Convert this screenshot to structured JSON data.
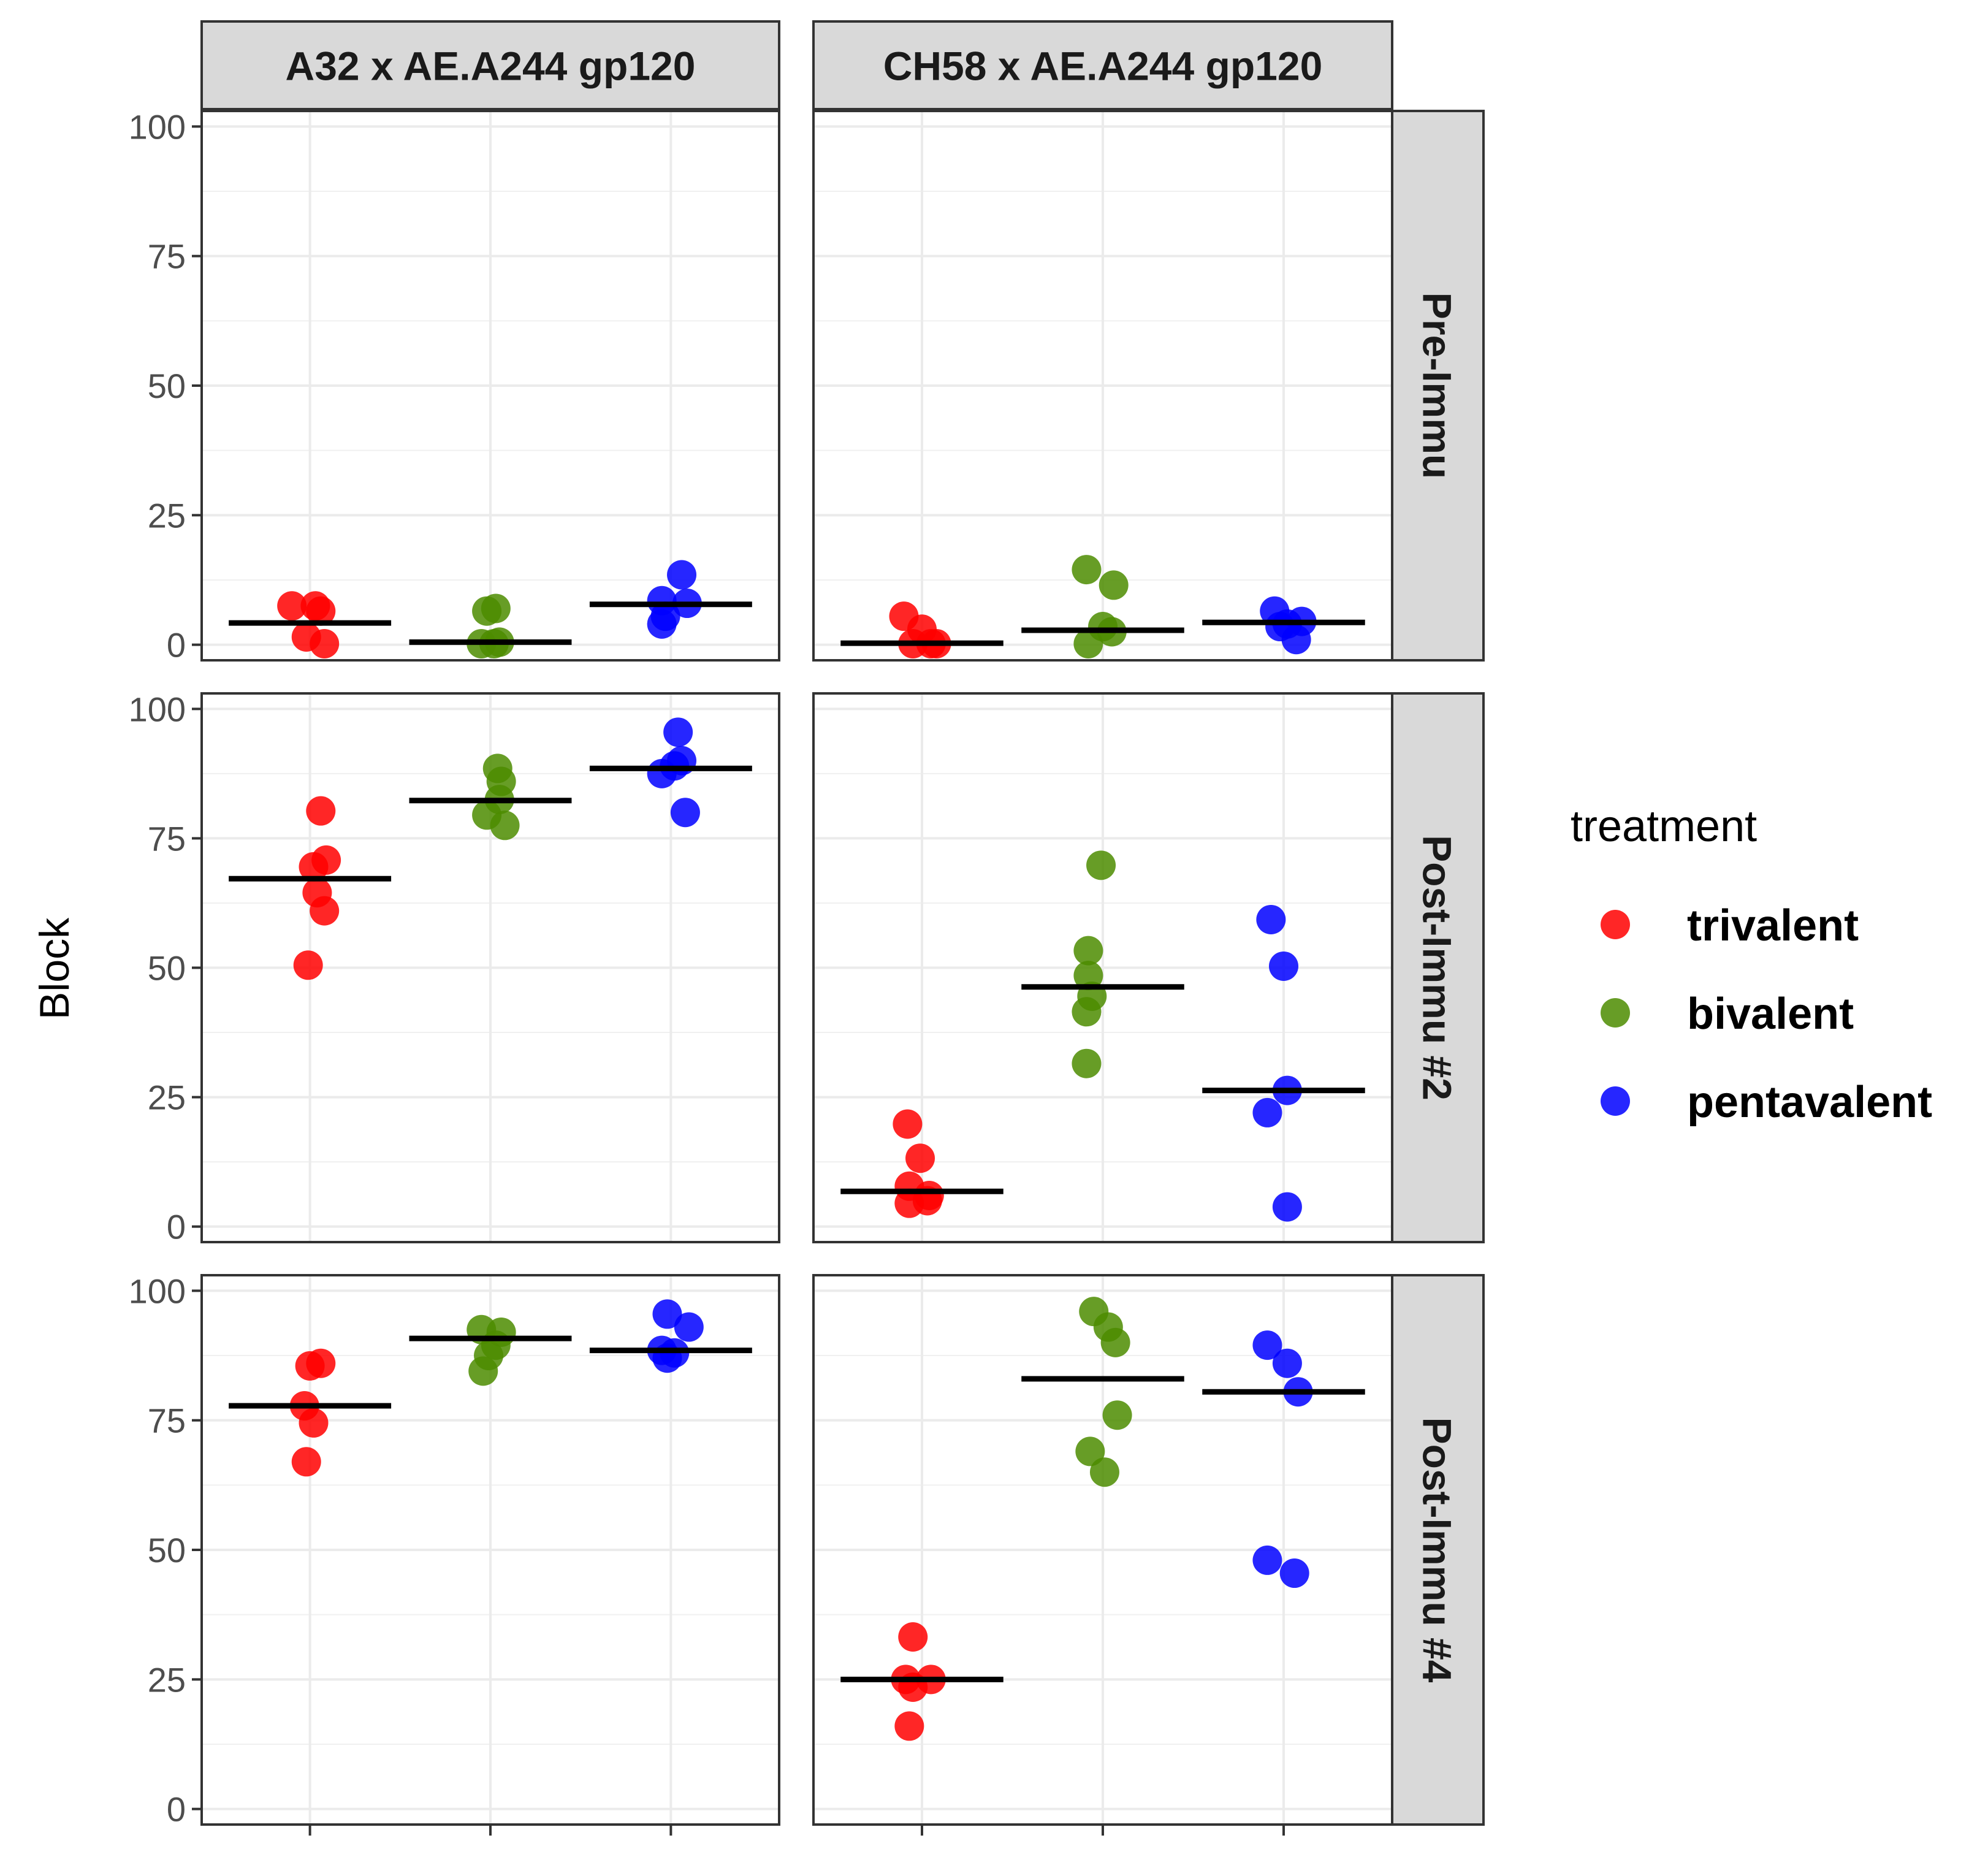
{
  "chart_data": {
    "type": "scatter",
    "title": "",
    "ylabel": "Block",
    "xlabel": "",
    "ylim": [
      -3,
      103
    ],
    "yticks": [
      0,
      25,
      50,
      75,
      100
    ],
    "grid": true,
    "legend_position": "right",
    "legend": {
      "title": "treatment",
      "entries": [
        {
          "label": "trivalent",
          "color": "#ff0000"
        },
        {
          "label": "bivalent",
          "color": "#4c8c00"
        },
        {
          "label": "pentavalent",
          "color": "#0000ff"
        }
      ]
    },
    "categories": [
      "trivalent",
      "bivalent",
      "pentavalent"
    ],
    "colors": {
      "trivalent": "#ff0000",
      "bivalent": "#4c8c00",
      "pentavalent": "#0000ff"
    },
    "columns": [
      "A32 x AE.A244 gp120",
      "CH58 x AE.A244 gp120"
    ],
    "rows": [
      "Pre-Immu",
      "Post-Immu #2",
      "Post-Immu #4"
    ],
    "panels": [
      {
        "row": 0,
        "col": 0,
        "series": [
          {
            "name": "trivalent",
            "mean": 4.2,
            "points": [
              [
                -0.1,
                7.5
              ],
              [
                0.03,
                7.5
              ],
              [
                0.06,
                6.5
              ],
              [
                -0.02,
                1.5
              ],
              [
                0.08,
                0.2
              ]
            ]
          },
          {
            "name": "bivalent",
            "mean": 0.5,
            "points": [
              [
                -0.02,
                6.5
              ],
              [
                0.03,
                7.0
              ],
              [
                -0.05,
                0.2
              ],
              [
                0.02,
                0.2
              ],
              [
                0.05,
                0.5
              ]
            ]
          },
          {
            "name": "pentavalent",
            "mean": 7.8,
            "points": [
              [
                0.06,
                13.5
              ],
              [
                -0.05,
                8.5
              ],
              [
                0.09,
                8.0
              ],
              [
                -0.03,
                5.5
              ],
              [
                -0.05,
                4.0
              ]
            ]
          }
        ]
      },
      {
        "row": 0,
        "col": 1,
        "series": [
          {
            "name": "trivalent",
            "mean": 0.3,
            "points": [
              [
                -0.1,
                5.5
              ],
              [
                0.0,
                3.0
              ],
              [
                -0.05,
                0.2
              ],
              [
                0.05,
                0.2
              ],
              [
                0.08,
                0.2
              ]
            ]
          },
          {
            "name": "bivalent",
            "mean": 2.8,
            "points": [
              [
                -0.09,
                14.5
              ],
              [
                0.06,
                11.5
              ],
              [
                -0.08,
                0.2
              ],
              [
                0.0,
                3.5
              ],
              [
                0.05,
                2.5
              ]
            ]
          },
          {
            "name": "pentavalent",
            "mean": 4.3,
            "points": [
              [
                -0.05,
                6.5
              ],
              [
                0.1,
                4.5
              ],
              [
                -0.02,
                3.5
              ],
              [
                0.07,
                1.0
              ],
              [
                0.02,
                4.0
              ]
            ]
          }
        ]
      },
      {
        "row": 1,
        "col": 0,
        "series": [
          {
            "name": "trivalent",
            "mean": 67.2,
            "points": [
              [
                0.06,
                80.3
              ],
              [
                0.09,
                70.8
              ],
              [
                0.02,
                69.5
              ],
              [
                0.04,
                64.5
              ],
              [
                0.08,
                61.0
              ],
              [
                -0.01,
                50.5
              ]
            ]
          },
          {
            "name": "bivalent",
            "mean": 82.3,
            "points": [
              [
                0.04,
                88.5
              ],
              [
                0.06,
                86.0
              ],
              [
                0.05,
                82.5
              ],
              [
                -0.02,
                79.5
              ],
              [
                0.08,
                77.5
              ]
            ]
          },
          {
            "name": "pentavalent",
            "mean": 88.5,
            "points": [
              [
                0.04,
                95.5
              ],
              [
                0.06,
                90.0
              ],
              [
                -0.05,
                87.5
              ],
              [
                0.02,
                89.0
              ],
              [
                0.08,
                80.0
              ]
            ]
          }
        ]
      },
      {
        "row": 1,
        "col": 1,
        "series": [
          {
            "name": "trivalent",
            "mean": 6.8,
            "points": [
              [
                -0.08,
                19.8
              ],
              [
                -0.01,
                13.2
              ],
              [
                -0.07,
                7.8
              ],
              [
                0.03,
                5.0
              ],
              [
                -0.07,
                4.5
              ],
              [
                0.04,
                6.0
              ]
            ]
          },
          {
            "name": "bivalent",
            "mean": 46.3,
            "points": [
              [
                -0.01,
                69.8
              ],
              [
                -0.08,
                53.3
              ],
              [
                -0.08,
                48.5
              ],
              [
                -0.06,
                44.5
              ],
              [
                -0.09,
                41.5
              ],
              [
                -0.09,
                31.5
              ]
            ]
          },
          {
            "name": "pentavalent",
            "mean": 26.3,
            "points": [
              [
                -0.07,
                59.3
              ],
              [
                0.0,
                50.3
              ],
              [
                0.02,
                26.3
              ],
              [
                -0.09,
                22.0
              ],
              [
                0.02,
                3.8
              ]
            ]
          }
        ]
      },
      {
        "row": 2,
        "col": 0,
        "series": [
          {
            "name": "trivalent",
            "mean": 77.8,
            "points": [
              [
                0.06,
                86.0
              ],
              [
                0.0,
                85.5
              ],
              [
                -0.03,
                77.8
              ],
              [
                0.02,
                74.5
              ],
              [
                -0.02,
                67.0
              ]
            ]
          },
          {
            "name": "bivalent",
            "mean": 90.8,
            "points": [
              [
                -0.05,
                92.5
              ],
              [
                0.06,
                92.0
              ],
              [
                0.03,
                89.5
              ],
              [
                -0.01,
                87.5
              ],
              [
                -0.04,
                84.5
              ]
            ]
          },
          {
            "name": "pentavalent",
            "mean": 88.5,
            "points": [
              [
                -0.02,
                95.5
              ],
              [
                0.1,
                93.0
              ],
              [
                -0.05,
                88.5
              ],
              [
                0.02,
                88.0
              ],
              [
                -0.02,
                87.0
              ]
            ]
          }
        ]
      },
      {
        "row": 2,
        "col": 1,
        "series": [
          {
            "name": "trivalent",
            "mean": 25.0,
            "points": [
              [
                -0.05,
                33.2
              ],
              [
                -0.09,
                25.0
              ],
              [
                0.05,
                25.0
              ],
              [
                -0.05,
                23.5
              ],
              [
                -0.07,
                16.0
              ]
            ]
          },
          {
            "name": "bivalent",
            "mean": 83.0,
            "points": [
              [
                -0.05,
                96.0
              ],
              [
                0.03,
                93.0
              ],
              [
                0.07,
                90.0
              ],
              [
                0.08,
                76.0
              ],
              [
                -0.07,
                69.0
              ],
              [
                0.01,
                65.0
              ]
            ]
          },
          {
            "name": "pentavalent",
            "mean": 80.5,
            "points": [
              [
                -0.09,
                89.5
              ],
              [
                0.02,
                86.0
              ],
              [
                0.08,
                80.5
              ],
              [
                -0.09,
                48.0
              ],
              [
                0.06,
                45.5
              ]
            ]
          }
        ]
      }
    ]
  }
}
